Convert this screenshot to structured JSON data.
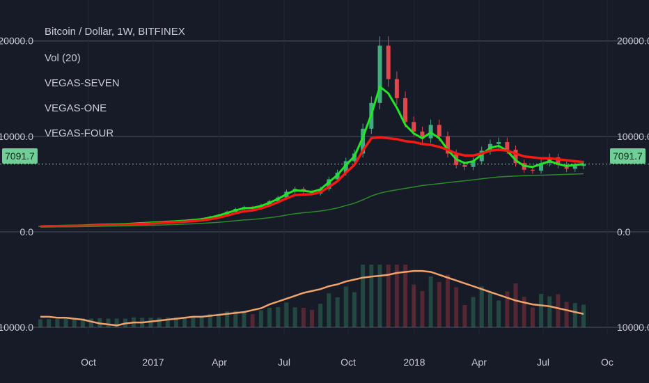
{
  "legend": {
    "title": "Bitcoin / Dollar, 1W, BITFINEX",
    "volume": "Vol (20)",
    "studies": [
      "VEGAS-SEVEN",
      "VEGAS-ONE",
      "VEGAS-FOUR"
    ]
  },
  "price_tag": "7091.7",
  "colors": {
    "background": "#171b27",
    "up": "#3fae7f",
    "down": "#e0474c",
    "green_ma": "#22e622",
    "red_ma": "#f21b16",
    "volume_ma": "#f0a36b"
  },
  "chart_data": {
    "type": "line",
    "price_axis_ticks": [
      "20000.0",
      "10000.0",
      "0.0",
      "10000.0"
    ],
    "time_axis_ticks": [
      "Oct",
      "2017",
      "Apr",
      "Jul",
      "Oct",
      "2018",
      "Apr",
      "Jul",
      "Oc"
    ],
    "ylim": [
      -10000,
      21000
    ],
    "current_price": 7091.7,
    "candles_close": [
      600,
      610,
      620,
      640,
      650,
      690,
      720,
      760,
      780,
      800,
      820,
      900,
      950,
      1000,
      1050,
      1100,
      1150,
      1200,
      1300,
      1400,
      1600,
      1800,
      2100,
      2400,
      2600,
      2500,
      2800,
      3200,
      3600,
      4200,
      4500,
      4200,
      4000,
      4500,
      5500,
      6200,
      7400,
      8200,
      10800,
      13500,
      19500,
      16000,
      14000,
      11500,
      10500,
      9800,
      11200,
      10000,
      8200,
      7000,
      6800,
      7400,
      8500,
      9200,
      9400,
      8600,
      7200,
      6500,
      6400,
      7200,
      7800,
      7000,
      6600,
      6900,
      7091.7
    ],
    "series": [
      {
        "name": "VEGAS-ONE",
        "values": [
          580,
          600,
          610,
          625,
          640,
          670,
          700,
          735,
          765,
          790,
          810,
          860,
          910,
          960,
          1010,
          1060,
          1110,
          1160,
          1240,
          1330,
          1500,
          1700,
          1980,
          2250,
          2470,
          2510,
          2700,
          3050,
          3450,
          3950,
          4350,
          4300,
          4180,
          4450,
          5200,
          5950,
          7000,
          7900,
          9900,
          12300,
          15200,
          14500,
          13000,
          11200,
          10300,
          9800,
          10400,
          9800,
          8600,
          7600,
          7200,
          7400,
          8100,
          8800,
          9000,
          8500,
          7500,
          6900,
          6800,
          7100,
          7400,
          7100,
          6900,
          7000,
          7100
        ]
      },
      {
        "name": "VEGAS-SEVEN",
        "values": [
          560,
          580,
          590,
          600,
          610,
          630,
          650,
          680,
          710,
          730,
          750,
          790,
          830,
          870,
          920,
          970,
          1020,
          1060,
          1120,
          1200,
          1320,
          1480,
          1700,
          1950,
          2150,
          2250,
          2450,
          2750,
          3100,
          3500,
          3850,
          3900,
          3950,
          4150,
          4700,
          5300,
          6200,
          7000,
          8500,
          9800,
          9900,
          9800,
          9700,
          9500,
          9400,
          9200,
          9100,
          8900,
          8600,
          8200,
          8000,
          8000,
          8200,
          8500,
          8600,
          8500,
          8200,
          7900,
          7800,
          7700,
          7700,
          7600,
          7500,
          7400,
          7300
        ]
      },
      {
        "name": "VEGAS-FOUR",
        "values": [
          500,
          510,
          520,
          530,
          540,
          550,
          560,
          575,
          590,
          605,
          620,
          640,
          660,
          680,
          710,
          740,
          770,
          800,
          840,
          880,
          940,
          1000,
          1080,
          1160,
          1240,
          1300,
          1380,
          1480,
          1600,
          1750,
          1900,
          2000,
          2080,
          2180,
          2320,
          2500,
          2750,
          3000,
          3350,
          3750,
          4050,
          4250,
          4400,
          4550,
          4700,
          4850,
          4950,
          5050,
          5150,
          5250,
          5350,
          5450,
          5550,
          5650,
          5750,
          5800,
          5850,
          5880,
          5900,
          5930,
          5960,
          5990,
          6020,
          6050,
          6080
        ]
      },
      {
        "name": "Vol (20)",
        "values": [
          -8900,
          -8900,
          -9000,
          -9000,
          -9100,
          -9200,
          -9400,
          -9600,
          -9700,
          -9800,
          -9600,
          -9500,
          -9500,
          -9400,
          -9300,
          -9200,
          -9100,
          -9000,
          -8900,
          -8900,
          -8800,
          -8700,
          -8600,
          -8500,
          -8400,
          -8200,
          -8000,
          -7600,
          -7300,
          -7000,
          -6700,
          -6400,
          -6200,
          -6000,
          -5700,
          -5500,
          -5200,
          -5000,
          -4800,
          -4700,
          -4600,
          -4500,
          -4300,
          -4200,
          -4100,
          -4100,
          -4200,
          -4500,
          -4800,
          -5100,
          -5400,
          -5700,
          -6000,
          -6300,
          -6600,
          -6900,
          -7200,
          -7400,
          -7600,
          -7700,
          -7800,
          -8000,
          -8200,
          -8400,
          -8600
        ]
      }
    ]
  }
}
